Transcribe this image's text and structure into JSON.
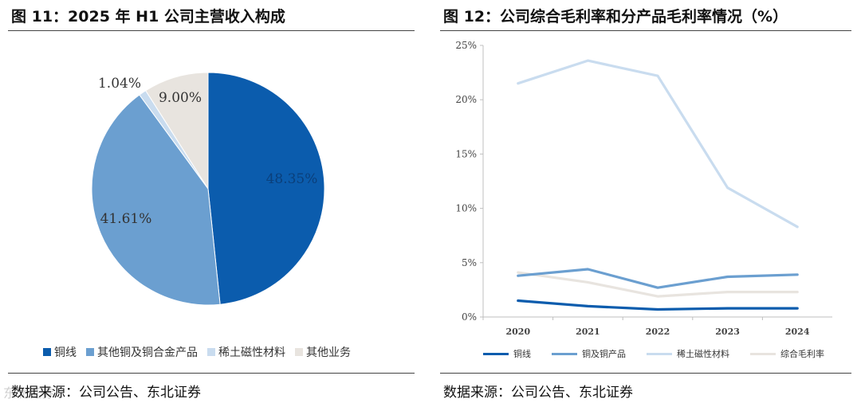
{
  "left": {
    "title": "图 11：2025 年 H1 公司主营收入构成",
    "source": "数据来源：公司公告、东北证券",
    "chart_data": {
      "type": "pie",
      "title": "2025 年 H1 公司主营收入构成",
      "slices": [
        {
          "name": "铜线",
          "value": 48.35,
          "label": "48.35%",
          "color": "#0b5cad"
        },
        {
          "name": "其他铜及铜合金产品",
          "value": 41.61,
          "label": "41.61%",
          "color": "#6b9fd0"
        },
        {
          "name": "稀土磁性材料",
          "value": 1.04,
          "label": "1.04%",
          "color": "#c9dcef"
        },
        {
          "name": "其他业务",
          "value": 9.0,
          "label": "9.00%",
          "color": "#e8e4df"
        }
      ]
    }
  },
  "right": {
    "title": "图 12：公司综合毛利率和分产品毛利率情况（%）",
    "source": "数据来源：公司公告、东北证券",
    "chart_data": {
      "type": "line",
      "title": "公司综合毛利率和分产品毛利率情况（%）",
      "categories": [
        "2020",
        "2021",
        "2022",
        "2023",
        "2024"
      ],
      "ylim": [
        0,
        25
      ],
      "yticks": [
        "0%",
        "5%",
        "10%",
        "15%",
        "20%",
        "25%"
      ],
      "series": [
        {
          "name": "铜线",
          "color": "#0b5cad",
          "values": [
            1.5,
            1.0,
            0.7,
            0.8,
            0.8
          ]
        },
        {
          "name": "铜及铜产品",
          "color": "#6b9fd0",
          "values": [
            3.8,
            4.4,
            2.7,
            3.7,
            3.9
          ]
        },
        {
          "name": "稀土磁性材料",
          "color": "#c9dcef",
          "values": [
            21.5,
            23.6,
            22.2,
            11.9,
            8.3
          ]
        },
        {
          "name": "综合毛利率",
          "color": "#e8e4df",
          "values": [
            4.1,
            3.2,
            1.9,
            2.3,
            2.3
          ]
        }
      ]
    }
  },
  "watermark": "东北证券"
}
